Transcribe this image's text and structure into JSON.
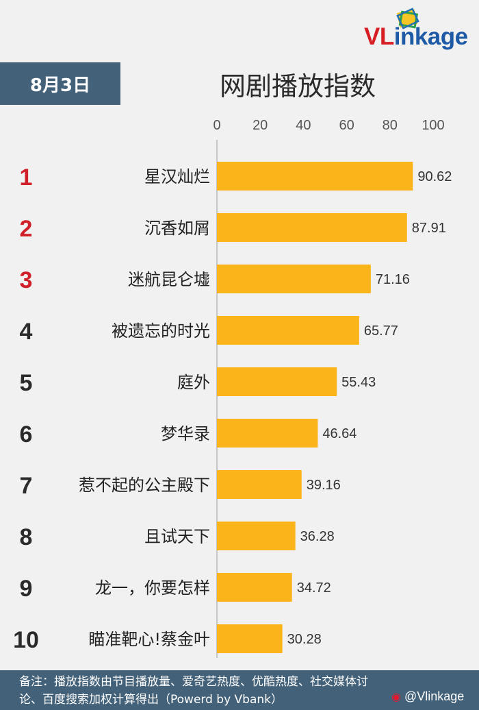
{
  "brand": {
    "logo_prefix": "VL",
    "logo_suffix": "inkage",
    "watermark": "@Vlinkage"
  },
  "header": {
    "date": "8月3日",
    "title": "网剧播放指数"
  },
  "footer": {
    "note_line1": "备注：播放指数由节目播放量、爱奇艺热度、优酷热度、社交媒体讨",
    "note_line2": "论、百度搜索加权计算得出（Powerd by Vbank）"
  },
  "colors": {
    "bar": "#fbb419",
    "badge_bg": "#43627a",
    "top_rank": "#d0202a",
    "rank": "#2b2b2b",
    "brand_red": "#d61e24",
    "brand_blue": "#1f5aa6"
  },
  "chart_data": {
    "type": "bar",
    "orientation": "horizontal",
    "title": "网剧播放指数",
    "xlim": [
      0,
      100
    ],
    "ticks": [
      0,
      20,
      40,
      60,
      80,
      100
    ],
    "ranks": [
      "1",
      "2",
      "3",
      "4",
      "5",
      "6",
      "7",
      "8",
      "9",
      "10"
    ],
    "categories": [
      "星汉灿烂",
      "沉香如屑",
      "迷航昆仑墟",
      "被遗忘的时光",
      "庭外",
      "梦华录",
      "惹不起的公主殿下",
      "且试天下",
      "龙一，你要怎样",
      "瞄准靶心!蔡金叶"
    ],
    "values": [
      90.62,
      87.91,
      71.16,
      65.77,
      55.43,
      46.64,
      39.16,
      36.28,
      34.72,
      30.28
    ],
    "value_labels": [
      "90.62",
      "87.91",
      "71.16",
      "65.77",
      "55.43",
      "46.64",
      "39.16",
      "36.28",
      "34.72",
      "30.28"
    ]
  }
}
